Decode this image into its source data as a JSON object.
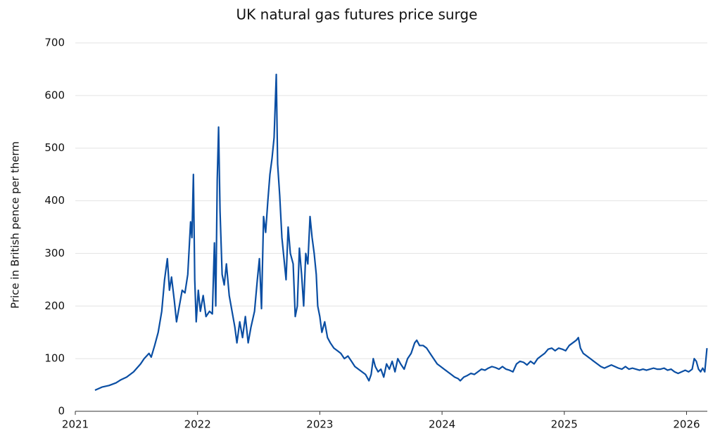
{
  "chart_data": {
    "type": "line",
    "title": "UK natural gas futures price surge",
    "y_label": "Price in British pence per therm",
    "color": "#0a4ea3",
    "grid": true,
    "xlim": [
      2021,
      2026.17
    ],
    "xticks": [
      2021,
      2022,
      2023,
      2024,
      2025,
      2026
    ],
    "ylim": [
      0,
      700
    ],
    "yticks": [
      0,
      100,
      200,
      300,
      400,
      500,
      600,
      700
    ],
    "x": [
      2021.161,
      2021.218,
      2021.276,
      2021.333,
      2021.374,
      2021.42,
      2021.477,
      2021.534,
      2021.563,
      2021.603,
      2021.621,
      2021.649,
      2021.678,
      2021.707,
      2021.73,
      2021.753,
      2021.77,
      2021.787,
      2021.81,
      2021.828,
      2021.851,
      2021.874,
      2021.897,
      2021.92,
      2021.943,
      2021.954,
      2021.966,
      2021.977,
      2021.989,
      2022.006,
      2022.023,
      2022.046,
      2022.069,
      2022.098,
      2022.121,
      2022.138,
      2022.149,
      2022.161,
      2022.172,
      2022.184,
      2022.201,
      2022.218,
      2022.236,
      2022.259,
      2022.282,
      2022.305,
      2022.322,
      2022.345,
      2022.368,
      2022.391,
      2022.414,
      2022.437,
      2022.466,
      2022.489,
      2022.506,
      2022.523,
      2022.54,
      2022.557,
      2022.575,
      2022.592,
      2022.609,
      2022.626,
      2022.644,
      2022.655,
      2022.672,
      2022.69,
      2022.707,
      2022.724,
      2022.741,
      2022.759,
      2022.782,
      2022.799,
      2022.816,
      2022.833,
      2022.851,
      2022.868,
      2022.885,
      2022.902,
      2022.92,
      2022.937,
      2022.954,
      2022.971,
      2022.983,
      2023.0,
      2023.017,
      2023.04,
      2023.063,
      2023.086,
      2023.115,
      2023.144,
      2023.172,
      2023.201,
      2023.23,
      2023.259,
      2023.287,
      2023.316,
      2023.345,
      2023.374,
      2023.402,
      2023.42,
      2023.437,
      2023.454,
      2023.477,
      2023.5,
      2023.523,
      2023.546,
      2023.569,
      2023.592,
      2023.615,
      2023.638,
      2023.661,
      2023.69,
      2023.718,
      2023.747,
      2023.776,
      2023.793,
      2023.816,
      2023.845,
      2023.874,
      2023.902,
      2023.931,
      2023.96,
      2023.989,
      2024.017,
      2024.046,
      2024.075,
      2024.103,
      2024.132,
      2024.149,
      2024.178,
      2024.207,
      2024.236,
      2024.264,
      2024.293,
      2024.322,
      2024.351,
      2024.379,
      2024.408,
      2024.437,
      2024.466,
      2024.494,
      2024.523,
      2024.552,
      2024.58,
      2024.609,
      2024.638,
      2024.667,
      2024.695,
      2024.724,
      2024.753,
      2024.782,
      2024.81,
      2024.839,
      2024.868,
      2024.897,
      2024.925,
      2024.954,
      2024.983,
      2025.011,
      2025.04,
      2025.069,
      2025.098,
      2025.115,
      2025.132,
      2025.155,
      2025.184,
      2025.213,
      2025.241,
      2025.27,
      2025.299,
      2025.328,
      2025.356,
      2025.385,
      2025.414,
      2025.443,
      2025.471,
      2025.5,
      2025.529,
      2025.557,
      2025.586,
      2025.615,
      2025.644,
      2025.672,
      2025.701,
      2025.73,
      2025.759,
      2025.787,
      2025.816,
      2025.845,
      2025.874,
      2025.902,
      2025.931,
      2025.96,
      2025.989,
      2026.017,
      2026.046,
      2026.063,
      2026.08,
      2026.098,
      2026.115,
      2026.132,
      2026.149,
      2026.167
    ],
    "values": [
      40,
      46,
      49,
      54,
      60,
      65,
      75,
      90,
      100,
      110,
      103,
      125,
      150,
      190,
      250,
      290,
      230,
      255,
      210,
      170,
      200,
      230,
      225,
      260,
      360,
      330,
      450,
      250,
      170,
      230,
      190,
      220,
      180,
      190,
      185,
      320,
      200,
      440,
      540,
      380,
      260,
      240,
      280,
      220,
      190,
      160,
      130,
      170,
      140,
      180,
      130,
      160,
      190,
      250,
      290,
      195,
      370,
      340,
      400,
      450,
      480,
      520,
      640,
      470,
      410,
      330,
      290,
      250,
      350,
      300,
      280,
      180,
      200,
      310,
      260,
      200,
      300,
      280,
      370,
      330,
      300,
      260,
      200,
      180,
      150,
      170,
      140,
      130,
      120,
      115,
      110,
      100,
      105,
      95,
      85,
      80,
      75,
      70,
      58,
      70,
      100,
      85,
      75,
      80,
      65,
      90,
      80,
      95,
      75,
      100,
      90,
      80,
      100,
      110,
      130,
      135,
      125,
      125,
      120,
      110,
      100,
      90,
      85,
      80,
      75,
      70,
      65,
      62,
      58,
      65,
      68,
      72,
      70,
      75,
      80,
      78,
      82,
      85,
      83,
      80,
      85,
      80,
      78,
      75,
      90,
      95,
      93,
      88,
      95,
      90,
      100,
      105,
      110,
      118,
      120,
      115,
      120,
      118,
      115,
      125,
      130,
      135,
      140,
      120,
      110,
      105,
      100,
      95,
      90,
      85,
      82,
      85,
      88,
      85,
      82,
      80,
      85,
      80,
      82,
      80,
      78,
      80,
      78,
      80,
      82,
      80,
      80,
      82,
      78,
      80,
      75,
      72,
      75,
      78,
      75,
      80,
      100,
      95,
      80,
      75,
      82,
      75,
      120
    ]
  }
}
